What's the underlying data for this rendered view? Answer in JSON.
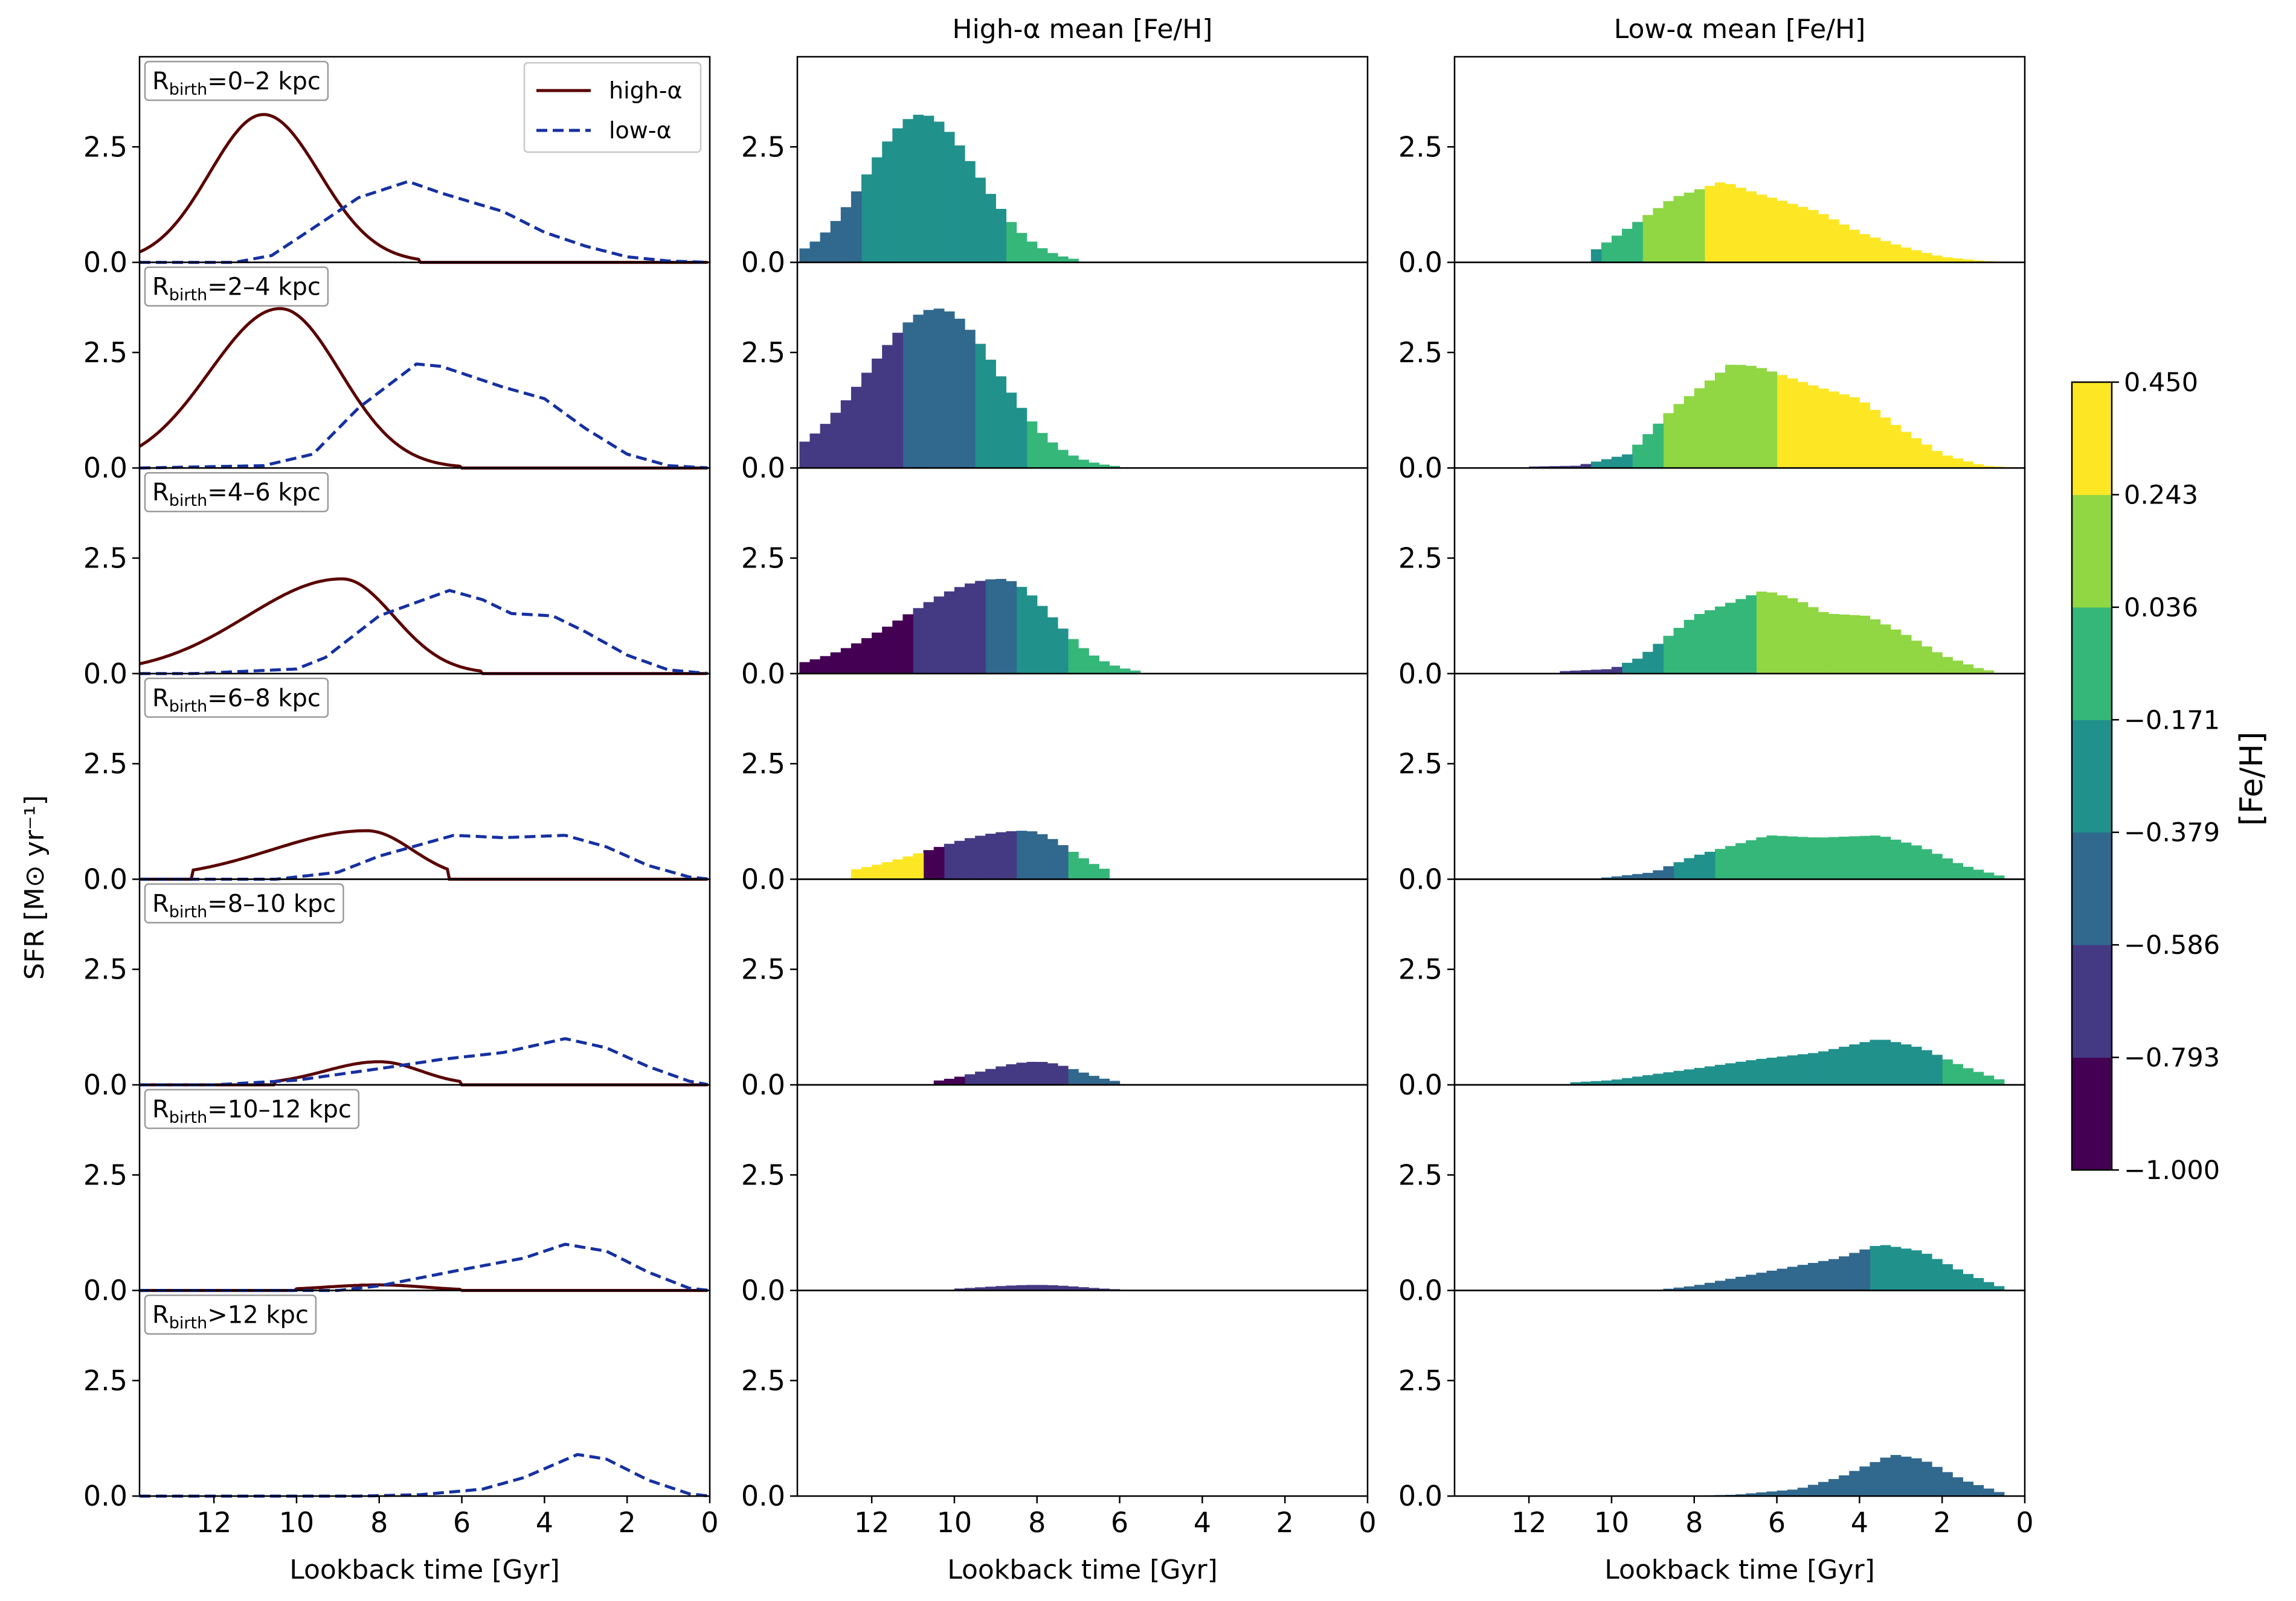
{
  "chart_data": {
    "type": "histogram-grid",
    "column_titles": [
      "",
      "High-α mean [Fe/H]",
      "Low-α mean [Fe/H]"
    ],
    "xlabel": "Lookback time [Gyr]",
    "ylabel": "SFR [M⊙ yr⁻¹]",
    "xlim": [
      13.8,
      0
    ],
    "ylim": [
      0,
      4.45
    ],
    "xticks": [
      12,
      10,
      8,
      6,
      4,
      2,
      0
    ],
    "yticks": [
      0.0,
      2.5
    ],
    "xtick_labels": [
      "12",
      "10",
      "8",
      "6",
      "4",
      "2",
      "0"
    ],
    "ytick_labels": [
      "0.0",
      "2.5"
    ],
    "row_labels": [
      {
        "prefix": "R",
        "sub": "birth",
        "suffix": "=0–2 kpc"
      },
      {
        "prefix": "R",
        "sub": "birth",
        "suffix": "=2–4 kpc"
      },
      {
        "prefix": "R",
        "sub": "birth",
        "suffix": "=4–6 kpc"
      },
      {
        "prefix": "R",
        "sub": "birth",
        "suffix": "=6–8 kpc"
      },
      {
        "prefix": "R",
        "sub": "birth",
        "suffix": "=8–10 kpc"
      },
      {
        "prefix": "R",
        "sub": "birth",
        "suffix": "=10–12 kpc"
      },
      {
        "prefix": "R",
        "sub": "birth",
        "suffix": ">12 kpc"
      }
    ],
    "legend": [
      {
        "label": "high-α",
        "color": "#5a0000",
        "style": "solid"
      },
      {
        "label": "low-α",
        "color": "#1530a0",
        "style": "dashed"
      }
    ],
    "colorbar": {
      "label": "[Fe/H]",
      "bounds": [
        -1.0,
        -0.793,
        -0.586,
        -0.379,
        -0.171,
        0.036,
        0.243,
        0.45
      ],
      "tick_labels": [
        "−1.000",
        "−0.793",
        "−0.586",
        "−0.379",
        "−0.171",
        "0.036",
        "0.243",
        "0.450"
      ],
      "colors": [
        "#440154",
        "#443983",
        "#31688e",
        "#21918c",
        "#35b779",
        "#90d743",
        "#fde725"
      ]
    },
    "bin_width": 0.25,
    "panels": [
      {
        "high": {
          "peak": 3.2,
          "peak_t": 10.8,
          "sig_l": 1.3,
          "sig_r": 1.35,
          "t_min": 7.0,
          "t_max": 13.8,
          "segments": [
            {
              "from": 12.2,
              "to": 13.8,
              "band": 2
            },
            {
              "from": 8.8,
              "to": 12.2,
              "band": 3
            },
            {
              "from": 7.0,
              "to": 8.8,
              "band": 4
            }
          ]
        },
        "low": {
          "points": [
            [
              11.5,
              0
            ],
            [
              10.6,
              0.15
            ],
            [
              9.5,
              0.8
            ],
            [
              8.5,
              1.4
            ],
            [
              7.3,
              1.75
            ],
            [
              6.5,
              1.5
            ],
            [
              5.0,
              1.1
            ],
            [
              4.0,
              0.65
            ],
            [
              3.0,
              0.35
            ],
            [
              2.0,
              0.12
            ],
            [
              1.0,
              0.03
            ],
            [
              0.0,
              0
            ]
          ],
          "segments": [
            {
              "from": 10.2,
              "to": 10.5,
              "band": 3
            },
            {
              "from": 9.2,
              "to": 10.2,
              "band": 4
            },
            {
              "from": 7.8,
              "to": 9.2,
              "band": 5
            },
            {
              "from": 0.0,
              "to": 7.8,
              "band": 6
            }
          ]
        }
      },
      {
        "high": {
          "peak": 3.45,
          "peak_t": 10.4,
          "sig_l": 1.7,
          "sig_r": 1.45,
          "t_min": 6.0,
          "t_max": 13.8,
          "segments": [
            {
              "from": 11.2,
              "to": 13.8,
              "band": 1
            },
            {
              "from": 9.5,
              "to": 11.2,
              "band": 2
            },
            {
              "from": 8.2,
              "to": 9.5,
              "band": 3
            },
            {
              "from": 6.0,
              "to": 8.2,
              "band": 4
            }
          ]
        },
        "low": {
          "points": [
            [
              13.8,
              0
            ],
            [
              10.8,
              0.05
            ],
            [
              9.6,
              0.3
            ],
            [
              8.5,
              1.3
            ],
            [
              7.1,
              2.25
            ],
            [
              6.5,
              2.2
            ],
            [
              5.0,
              1.75
            ],
            [
              4.0,
              1.5
            ],
            [
              3.0,
              0.85
            ],
            [
              2.0,
              0.3
            ],
            [
              1.0,
              0.05
            ],
            [
              0.0,
              0
            ]
          ],
          "segments": [
            {
              "from": 10.5,
              "to": 12.0,
              "band": 1
            },
            {
              "from": 9.5,
              "to": 10.5,
              "band": 3
            },
            {
              "from": 8.8,
              "to": 9.5,
              "band": 4
            },
            {
              "from": 5.9,
              "to": 8.8,
              "band": 5
            },
            {
              "from": 0.0,
              "to": 5.9,
              "band": 6
            }
          ]
        }
      },
      {
        "high": {
          "peak": 2.05,
          "peak_t": 8.9,
          "sig_l": 2.3,
          "sig_r": 1.25,
          "t_min": 5.5,
          "t_max": 13.8,
          "segments": [
            {
              "from": 11.0,
              "to": 13.8,
              "band": 0
            },
            {
              "from": 9.3,
              "to": 11.0,
              "band": 1
            },
            {
              "from": 8.5,
              "to": 9.3,
              "band": 2
            },
            {
              "from": 7.3,
              "to": 8.5,
              "band": 3
            },
            {
              "from": 5.5,
              "to": 7.3,
              "band": 4
            }
          ]
        },
        "low": {
          "points": [
            [
              12.5,
              0
            ],
            [
              10.0,
              0.1
            ],
            [
              9.3,
              0.35
            ],
            [
              8.0,
              1.25
            ],
            [
              6.3,
              1.8
            ],
            [
              5.5,
              1.6
            ],
            [
              4.8,
              1.3
            ],
            [
              3.8,
              1.25
            ],
            [
              3.0,
              0.9
            ],
            [
              2.0,
              0.4
            ],
            [
              1.0,
              0.08
            ],
            [
              0.0,
              0
            ]
          ],
          "segments": [
            {
              "from": 9.8,
              "to": 11.2,
              "band": 1
            },
            {
              "from": 8.8,
              "to": 9.8,
              "band": 3
            },
            {
              "from": 6.4,
              "to": 8.8,
              "band": 4
            },
            {
              "from": 0.8,
              "to": 6.4,
              "band": 5
            }
          ]
        }
      },
      {
        "high": {
          "peak": 1.05,
          "peak_t": 8.3,
          "sig_l": 2.3,
          "sig_r": 1.1,
          "t_min": 6.3,
          "t_max": 12.5,
          "segments": [
            {
              "from": 10.8,
              "to": 12.5,
              "band": 6
            },
            {
              "from": 10.3,
              "to": 10.8,
              "band": 0
            },
            {
              "from": 8.5,
              "to": 10.3,
              "band": 1
            },
            {
              "from": 7.3,
              "to": 8.5,
              "band": 2
            },
            {
              "from": 6.3,
              "to": 7.3,
              "band": 4
            }
          ]
        },
        "low": {
          "points": [
            [
              10.5,
              0
            ],
            [
              9.0,
              0.15
            ],
            [
              8.0,
              0.5
            ],
            [
              6.2,
              0.95
            ],
            [
              5.0,
              0.9
            ],
            [
              3.5,
              0.95
            ],
            [
              2.5,
              0.7
            ],
            [
              1.5,
              0.3
            ],
            [
              0.5,
              0.05
            ],
            [
              0.0,
              0
            ]
          ],
          "segments": [
            {
              "from": 8.5,
              "to": 10.5,
              "band": 2
            },
            {
              "from": 7.5,
              "to": 8.5,
              "band": 3
            },
            {
              "from": 0.5,
              "to": 7.5,
              "band": 4
            }
          ]
        }
      },
      {
        "high": {
          "peak": 0.5,
          "peak_t": 8.0,
          "sig_l": 1.3,
          "sig_r": 1.0,
          "t_min": 6.0,
          "t_max": 10.5,
          "segments": [
            {
              "from": 9.8,
              "to": 10.5,
              "band": 0
            },
            {
              "from": 7.3,
              "to": 9.8,
              "band": 1
            },
            {
              "from": 6.0,
              "to": 7.3,
              "band": 2
            }
          ]
        },
        "low": {
          "points": [
            [
              12.0,
              0
            ],
            [
              10.0,
              0.1
            ],
            [
              8.0,
              0.35
            ],
            [
              6.5,
              0.55
            ],
            [
              5.0,
              0.7
            ],
            [
              3.5,
              1.0
            ],
            [
              2.5,
              0.8
            ],
            [
              1.5,
              0.4
            ],
            [
              0.5,
              0.08
            ],
            [
              0.0,
              0
            ]
          ],
          "segments": [
            {
              "from": 2.0,
              "to": 11.0,
              "band": 3
            },
            {
              "from": 0.5,
              "to": 2.0,
              "band": 4
            }
          ]
        }
      },
      {
        "high": {
          "peak": 0.12,
          "peak_t": 8.0,
          "sig_l": 1.3,
          "sig_r": 1.1,
          "t_min": 6.0,
          "t_max": 10.0,
          "segments": [
            {
              "from": 6.0,
              "to": 10.0,
              "band": 1
            }
          ]
        },
        "low": {
          "points": [
            [
              9.0,
              0
            ],
            [
              8.0,
              0.1
            ],
            [
              6.0,
              0.45
            ],
            [
              4.5,
              0.7
            ],
            [
              3.5,
              1.0
            ],
            [
              2.5,
              0.85
            ],
            [
              1.5,
              0.4
            ],
            [
              0.5,
              0.05
            ],
            [
              0.0,
              0
            ]
          ],
          "segments": [
            {
              "from": 3.7,
              "to": 9.0,
              "band": 2
            },
            {
              "from": 0.5,
              "to": 3.7,
              "band": 3
            }
          ]
        }
      },
      {
        "high": null,
        "low": {
          "points": [
            [
              8.5,
              0
            ],
            [
              7.0,
              0.03
            ],
            [
              5.5,
              0.15
            ],
            [
              4.5,
              0.4
            ],
            [
              3.2,
              0.9
            ],
            [
              2.5,
              0.8
            ],
            [
              1.5,
              0.35
            ],
            [
              0.5,
              0.05
            ],
            [
              0.0,
              0
            ]
          ],
          "segments": [
            {
              "from": 0.5,
              "to": 8.0,
              "band": 2
            }
          ]
        }
      }
    ]
  }
}
